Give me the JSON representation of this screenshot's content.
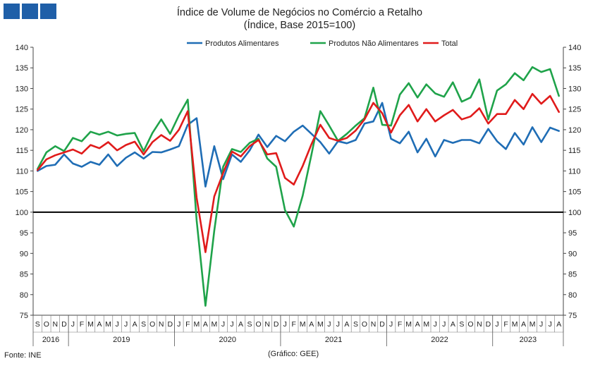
{
  "chart_data": {
    "type": "line",
    "title": "Índice de Volume de Negócios no Comércio a Retalho",
    "subtitle": "(Índice, Base 2015=100)",
    "ylim": [
      75,
      140
    ],
    "yticks": [
      75,
      80,
      85,
      90,
      95,
      100,
      105,
      110,
      115,
      120,
      125,
      130,
      135,
      140
    ],
    "reference_line": 100,
    "months": [
      "S",
      "O",
      "N",
      "D",
      "J",
      "F",
      "M",
      "A",
      "M",
      "J",
      "J",
      "A",
      "S",
      "O",
      "N",
      "D",
      "J",
      "F",
      "M",
      "A",
      "M",
      "J",
      "J",
      "A",
      "S",
      "O",
      "N",
      "D",
      "J",
      "F",
      "M",
      "A",
      "M",
      "J",
      "J",
      "A",
      "S",
      "O",
      "N",
      "D",
      "J",
      "F",
      "M",
      "A",
      "M",
      "J",
      "J",
      "A",
      "S",
      "O",
      "N",
      "D",
      "J",
      "F",
      "M",
      "A",
      "M",
      "J",
      "J",
      "A"
    ],
    "years": [
      {
        "label": "2016",
        "start": 0,
        "end": 3
      },
      {
        "label": "2019",
        "start": 4,
        "end": 15
      },
      {
        "label": "2020",
        "start": 16,
        "end": 27
      },
      {
        "label": "2021",
        "start": 28,
        "end": 39
      },
      {
        "label": "2022",
        "start": 40,
        "end": 51
      },
      {
        "label": "2023",
        "start": 52,
        "end": 59
      }
    ],
    "legend_position": "top-center",
    "series": [
      {
        "name": "Produtos Alimentares",
        "color": "#1f6db5",
        "values": [
          110.0,
          111.2,
          111.5,
          114.0,
          111.8,
          111.0,
          112.2,
          111.5,
          114.0,
          111.2,
          113.2,
          114.5,
          113.0,
          114.6,
          114.5,
          115.2,
          116.0,
          121.2,
          122.8,
          106.2,
          116.0,
          108.0,
          114.0,
          112.2,
          115.0,
          118.8,
          115.8,
          118.5,
          117.2,
          119.5,
          121.0,
          119.0,
          117.0,
          114.2,
          117.2,
          116.7,
          117.5,
          121.5,
          122.0,
          126.5,
          117.8,
          116.7,
          119.5,
          114.5,
          117.8,
          113.5,
          117.5,
          116.8,
          117.5,
          117.5,
          116.7,
          120.2,
          117.2,
          115.3,
          119.2,
          116.4,
          120.6,
          117.0,
          120.5,
          119.7
        ]
      },
      {
        "name": "Produtos Não Alimentares",
        "color": "#1fa34a",
        "values": [
          110.5,
          114.5,
          116.0,
          114.8,
          118.0,
          117.2,
          119.5,
          118.8,
          119.5,
          118.6,
          119.0,
          119.2,
          114.8,
          119.2,
          122.5,
          119.0,
          123.5,
          127.3,
          98.0,
          77.3,
          95.5,
          111.0,
          115.3,
          114.6,
          116.8,
          117.8,
          113.0,
          111.0,
          100.5,
          96.5,
          104.0,
          114.0,
          124.5,
          121.0,
          117.3,
          119.0,
          121.0,
          122.8,
          130.2,
          121.2,
          121.0,
          128.5,
          131.3,
          127.8,
          131.0,
          128.8,
          128.0,
          131.5,
          126.8,
          127.8,
          132.2,
          122.5,
          129.5,
          131.0,
          133.7,
          132.0,
          135.2,
          134.0,
          134.7,
          128.2
        ]
      },
      {
        "name": "Total",
        "color": "#e01b1b",
        "values": [
          110.2,
          112.8,
          113.8,
          114.5,
          115.2,
          114.2,
          116.3,
          115.5,
          117.0,
          115.0,
          116.3,
          117.1,
          114.0,
          117.0,
          118.7,
          117.3,
          120.0,
          124.5,
          103.5,
          90.3,
          103.8,
          109.5,
          114.7,
          113.5,
          116.0,
          117.5,
          114.0,
          114.3,
          108.3,
          106.7,
          111.2,
          116.5,
          121.2,
          118.0,
          117.3,
          118.0,
          119.8,
          122.5,
          126.5,
          124.0,
          119.3,
          123.5,
          126.0,
          122.0,
          125.0,
          122.0,
          123.5,
          124.8,
          122.5,
          123.2,
          125.2,
          121.5,
          123.8,
          123.8,
          127.2,
          125.0,
          128.7,
          126.3,
          128.2,
          124.3
        ]
      }
    ]
  },
  "footer": {
    "source": "Fonte: INE",
    "credit": "(Gráfico: GEE)"
  }
}
